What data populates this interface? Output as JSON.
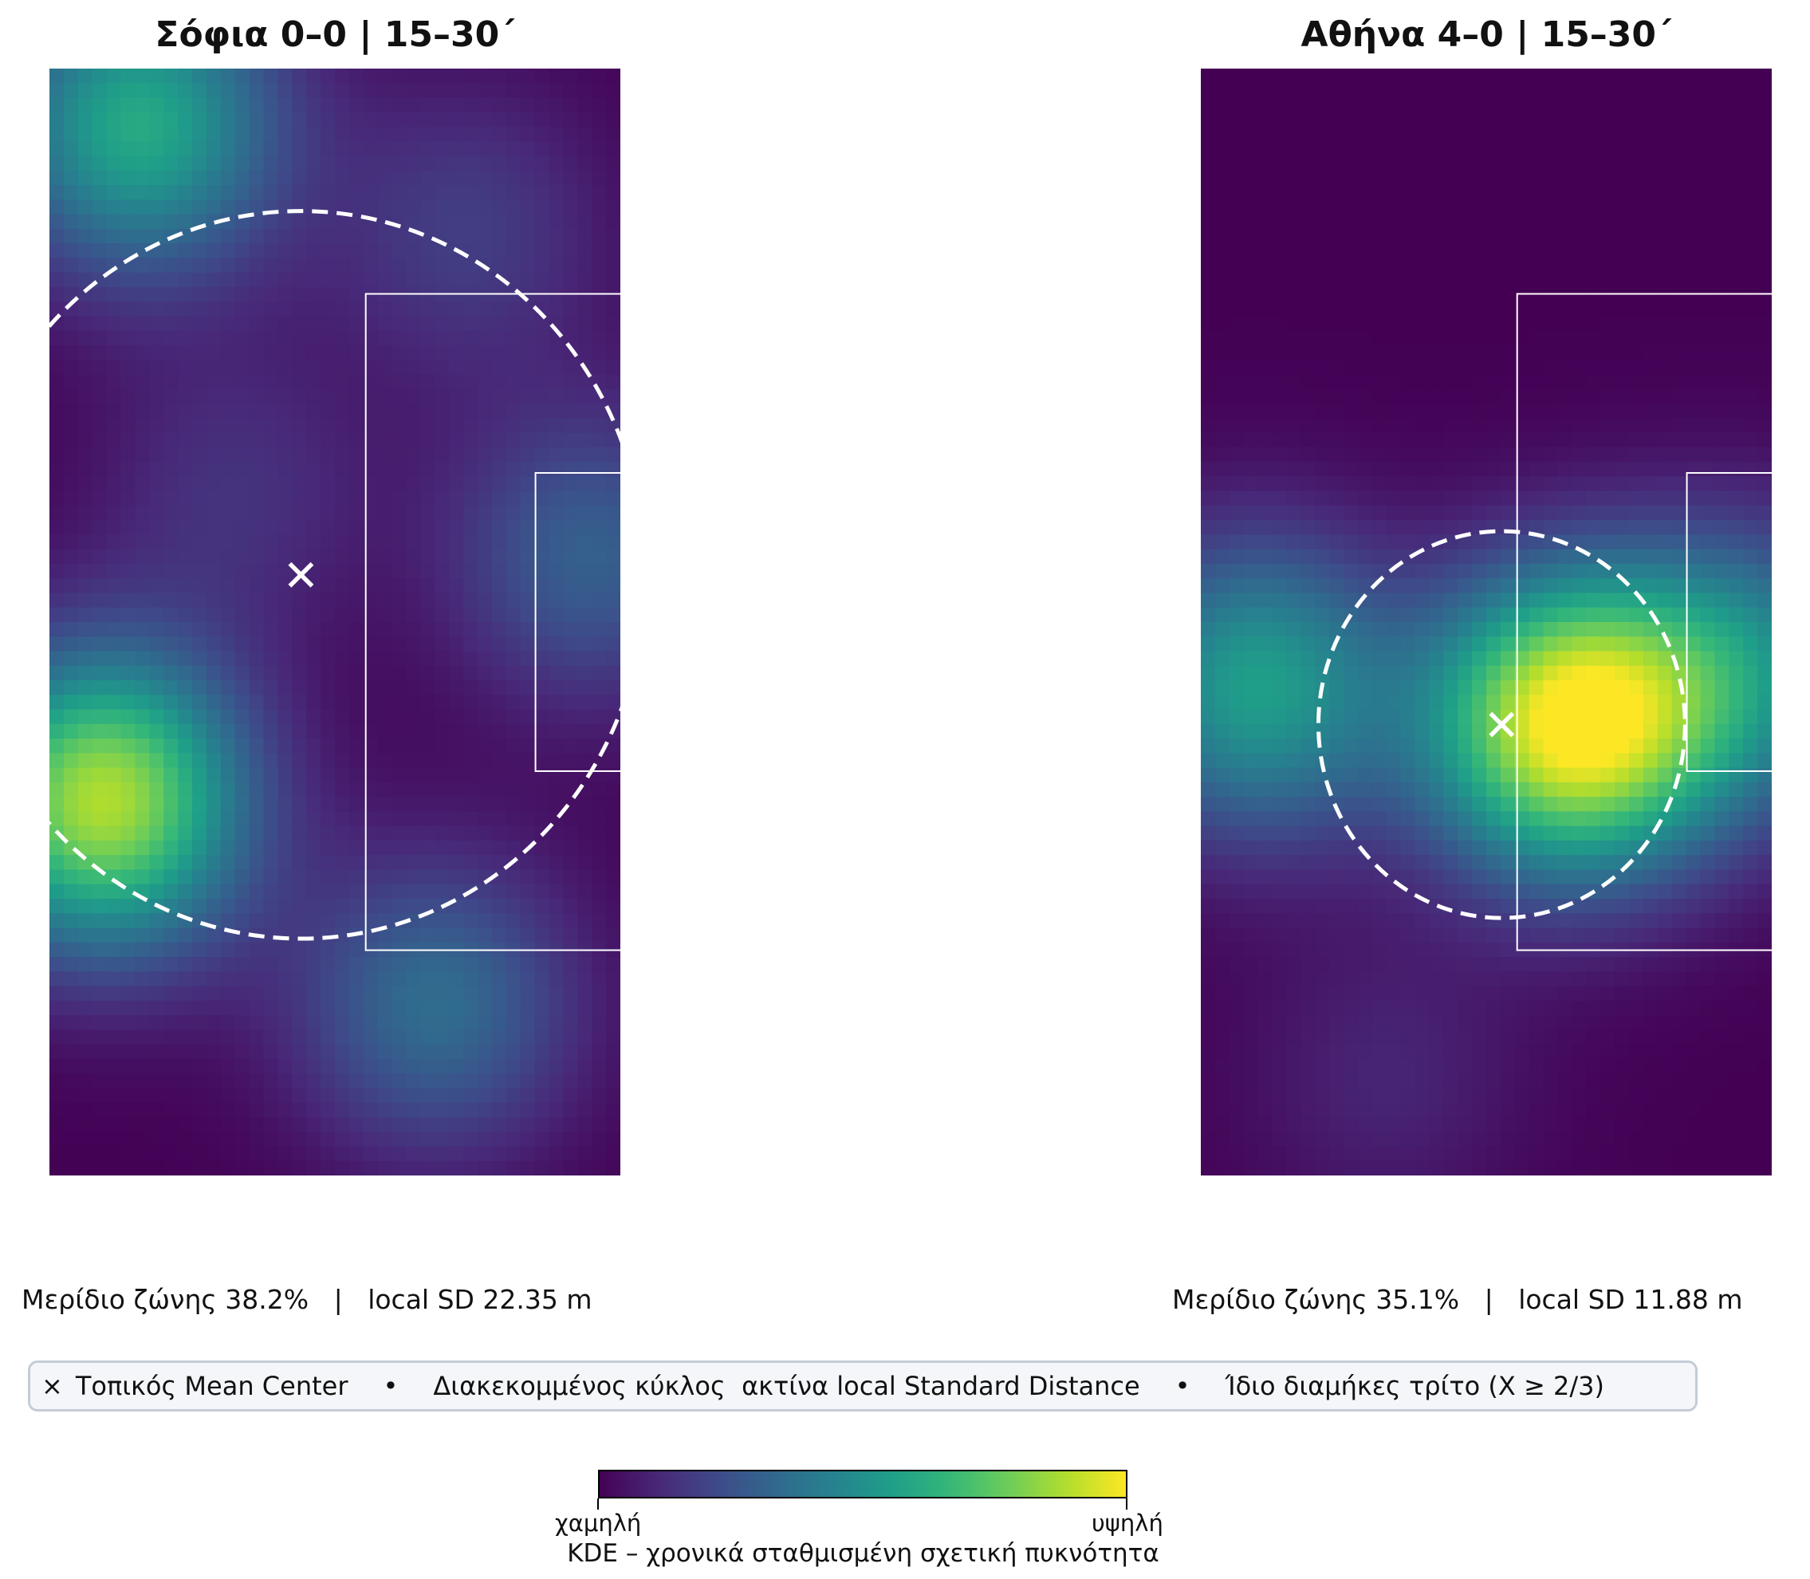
{
  "colors": {
    "pitch_lines": "#ffffff",
    "legend_bg": "#f4f6f9",
    "legend_border": "#c4ccd6",
    "colormap": "viridis"
  },
  "chart_data": [
    {
      "type": "heatmap",
      "title": "Σόφια 0–0 | 15–30΄",
      "zone_share": "Μερίδιο ζώνης 38.2%",
      "local_sd": "local SD 22.35 m",
      "mean_center": {
        "x": 84.3,
        "y": 36.9,
        "icon": "x-marker"
      },
      "sd_radius_m": 22.35,
      "x_range": [
        68,
        105
      ],
      "y_range": [
        0,
        68
      ],
      "density_peaks": [
        {
          "x": 71.5,
          "y": 23.0,
          "level": 0.88
        },
        {
          "x": 73.8,
          "y": 64.5,
          "level": 0.6
        },
        {
          "x": 93.0,
          "y": 10.5,
          "level": 0.35
        },
        {
          "x": 103.0,
          "y": 38.0,
          "level": 0.3
        },
        {
          "x": 80.0,
          "y": 42.0,
          "level": 0.14
        },
        {
          "x": 95.0,
          "y": 58.0,
          "level": 0.18
        }
      ]
    },
    {
      "type": "heatmap",
      "title": "Αθήνα 4–0 | 15–30΄",
      "zone_share": "Μερίδιο ζώνης 35.1%",
      "local_sd": "local SD 11.88 m",
      "mean_center": {
        "x": 87.5,
        "y": 27.7,
        "icon": "x-marker"
      },
      "sd_radius_m": 11.88,
      "x_range": [
        68,
        105
      ],
      "y_range": [
        0,
        68
      ],
      "density_peaks": [
        {
          "x": 92.0,
          "y": 27.7,
          "level": 1.0
        },
        {
          "x": 71.5,
          "y": 30.0,
          "level": 0.55
        },
        {
          "x": 103.5,
          "y": 31.0,
          "level": 0.42
        },
        {
          "x": 80.0,
          "y": 6.0,
          "level": 0.1
        }
      ]
    }
  ],
  "legend": {
    "marker_symbol": "×",
    "mean_center": "Τοπικός Mean Center",
    "separator": "•",
    "circle": "Διακεκομμένος κύκλος  ακτίνα local Standard Distance",
    "zone": "Ίδιο διαμήκες τρίτο (X ≥ 2/3)",
    "stat_divider": "|"
  },
  "colorbar": {
    "low": "χαμηλή",
    "high": "υψηλή",
    "label": "KDE – χρονικά σταθμισμένη σχετική πυκνότητα"
  }
}
